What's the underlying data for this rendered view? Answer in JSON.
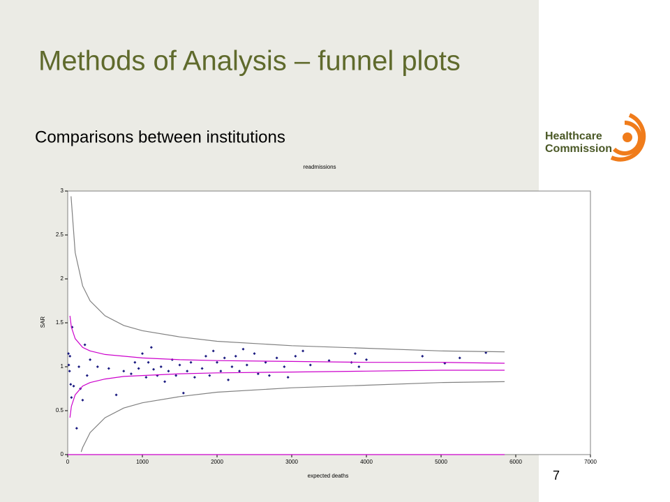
{
  "slide_title": "Methods of Analysis – funnel plots",
  "subtitle": "Comparisons between institutions",
  "logo": [
    "Healthcare",
    "Commission"
  ],
  "page_number": "7",
  "chart_data": {
    "type": "scatter",
    "title": "readmissions",
    "x_label": "expected deaths",
    "y_label": "SAR",
    "xlim": [
      0,
      7000
    ],
    "xticks": [
      0,
      1000,
      2000,
      3000,
      4000,
      5000,
      6000,
      7000
    ],
    "ylim": [
      0,
      3
    ],
    "yticks": [
      0,
      0.5,
      1,
      1.5,
      2,
      2.5,
      3
    ],
    "series": [
      {
        "mode": "markers",
        "color": "#1a1a80",
        "x": [
          10,
          15,
          25,
          30,
          40,
          50,
          60,
          80,
          120,
          150,
          170,
          200,
          230,
          260,
          300,
          400,
          550,
          650,
          750,
          850,
          900,
          950,
          1000,
          1050,
          1080,
          1120,
          1150,
          1200,
          1250,
          1300,
          1350,
          1400,
          1450,
          1500,
          1550,
          1600,
          1650,
          1700,
          1800,
          1850,
          1900,
          1950,
          2000,
          2050,
          2100,
          2150,
          2200,
          2250,
          2300,
          2350,
          2400,
          2500,
          2550,
          2650,
          2700,
          2800,
          2900,
          2950,
          3050,
          3150,
          3250,
          3500,
          3800,
          3850,
          3900,
          4000,
          4750,
          5050,
          5250,
          5600
        ],
        "values": [
          1.15,
          1.02,
          0.95,
          1.12,
          0.8,
          0.65,
          1.45,
          0.78,
          0.3,
          1.0,
          0.75,
          0.62,
          1.25,
          0.9,
          1.08,
          1.0,
          0.98,
          0.68,
          0.95,
          0.92,
          1.05,
          0.98,
          1.15,
          0.88,
          1.05,
          1.22,
          0.97,
          0.9,
          1.0,
          0.83,
          0.95,
          1.08,
          0.9,
          1.02,
          0.7,
          0.95,
          1.05,
          0.88,
          0.98,
          1.12,
          0.9,
          1.18,
          1.05,
          0.95,
          1.1,
          0.85,
          1.0,
          1.12,
          0.95,
          1.2,
          1.02,
          1.15,
          0.92,
          1.05,
          0.9,
          1.1,
          1.0,
          0.88,
          1.12,
          1.18,
          1.02,
          1.07,
          1.05,
          1.15,
          1.0,
          1.08,
          1.12,
          1.04,
          1.1,
          1.16
        ]
      },
      {
        "mode": "line",
        "color": "#808080",
        "x": [
          45,
          100,
          200,
          300,
          500,
          750,
          1000,
          1500,
          2000,
          3000,
          4000,
          5000,
          5850
        ],
        "values": [
          2.94,
          2.3,
          1.92,
          1.75,
          1.58,
          1.47,
          1.41,
          1.34,
          1.29,
          1.24,
          1.21,
          1.18,
          1.17
        ]
      },
      {
        "mode": "line",
        "color": "#808080",
        "x": [
          180,
          200,
          300,
          500,
          750,
          1000,
          1500,
          2000,
          3000,
          4000,
          5000,
          5850
        ],
        "values": [
          0.03,
          0.08,
          0.25,
          0.42,
          0.53,
          0.59,
          0.66,
          0.71,
          0.76,
          0.79,
          0.82,
          0.83
        ]
      },
      {
        "mode": "line",
        "color": "#cc00cc",
        "x": [
          30,
          50,
          100,
          200,
          300,
          500,
          750,
          1000,
          1500,
          2000,
          3000,
          4000,
          5000,
          5850
        ],
        "values": [
          1.58,
          1.45,
          1.32,
          1.22,
          1.18,
          1.14,
          1.12,
          1.1,
          1.08,
          1.07,
          1.06,
          1.05,
          1.05,
          1.04
        ]
      },
      {
        "mode": "line",
        "color": "#cc00cc",
        "x": [
          30,
          50,
          100,
          200,
          300,
          500,
          750,
          1000,
          1500,
          2000,
          3000,
          4000,
          5000,
          5850
        ],
        "values": [
          0.42,
          0.55,
          0.68,
          0.78,
          0.82,
          0.86,
          0.89,
          0.9,
          0.92,
          0.93,
          0.94,
          0.95,
          0.96,
          0.96
        ]
      },
      {
        "mode": "line",
        "color": "#cc00cc",
        "x": [
          0,
          5850
        ],
        "values": [
          0,
          0
        ]
      }
    ]
  }
}
